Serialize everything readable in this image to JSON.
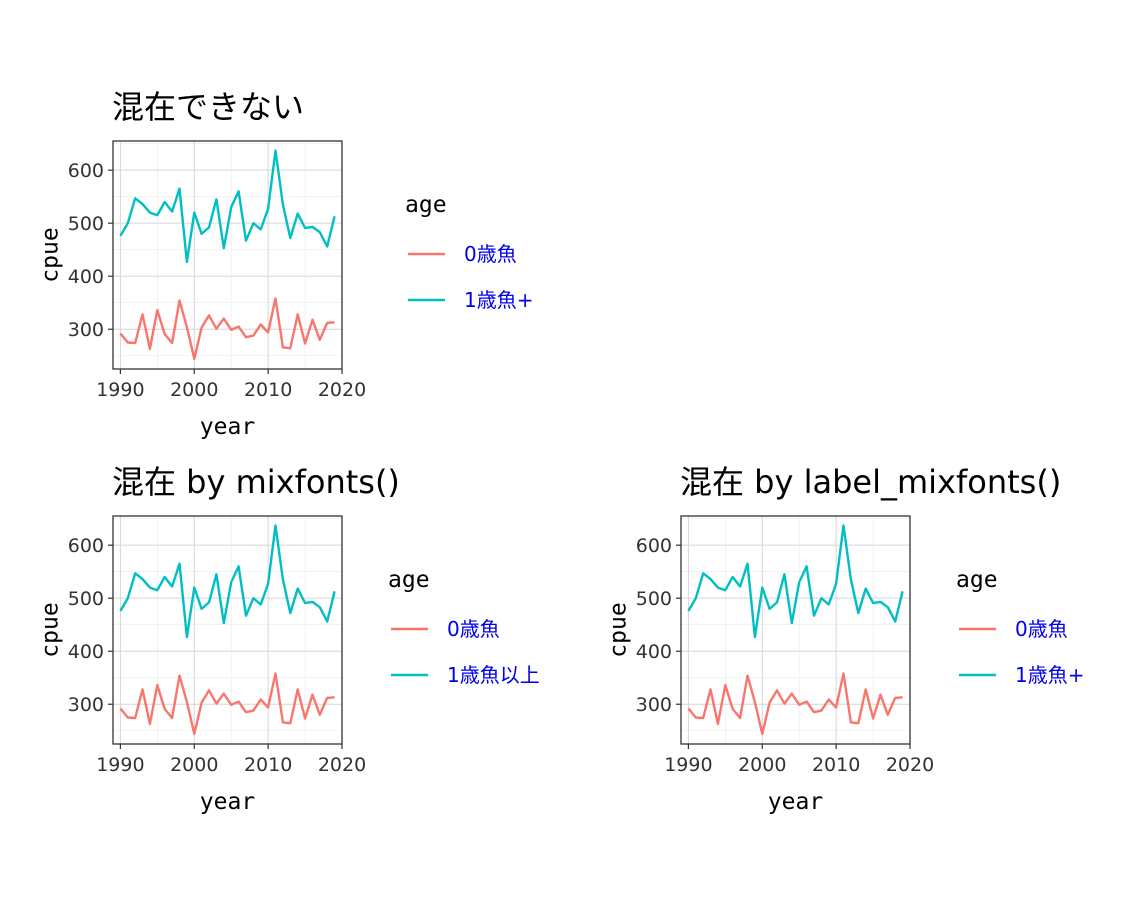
{
  "chart_data": [
    {
      "type": "line",
      "title": "混在できない",
      "xlabel": "year",
      "ylabel": "cpue",
      "xlim": [
        1989,
        2020
      ],
      "ylim": [
        225,
        655
      ],
      "xticks": [
        1990,
        2000,
        2010,
        2020
      ],
      "yticks": [
        300,
        400,
        500,
        600
      ],
      "grid": true,
      "legend": {
        "title": "age",
        "position": "right"
      },
      "x": [
        1990,
        1991,
        1992,
        1993,
        1994,
        1995,
        1996,
        1997,
        1998,
        1999,
        2000,
        2001,
        2002,
        2003,
        2004,
        2005,
        2006,
        2007,
        2008,
        2009,
        2010,
        2011,
        2012,
        2013,
        2014,
        2015,
        2016,
        2017,
        2018,
        2019
      ],
      "series": [
        {
          "name": "0歳魚",
          "color": "#f8766d",
          "values": [
            292,
            275,
            274,
            328,
            263,
            336,
            291,
            274,
            354,
            304,
            244,
            303,
            326,
            301,
            320,
            299,
            305,
            285,
            288,
            309,
            294,
            358,
            266,
            264,
            328,
            273,
            318,
            280,
            312,
            313
          ]
        },
        {
          "name": "1歳魚+",
          "color": "#00bfc4",
          "values": [
            476,
            500,
            547,
            536,
            520,
            515,
            540,
            522,
            565,
            427,
            520,
            480,
            492,
            545,
            453,
            530,
            560,
            467,
            500,
            488,
            527,
            637,
            535,
            472,
            518,
            491,
            493,
            483,
            456,
            513
          ]
        }
      ]
    },
    {
      "type": "line",
      "title": "混在 by mixfonts()",
      "xlabel": "year",
      "ylabel": "cpue",
      "xlim": [
        1989,
        2020
      ],
      "ylim": [
        225,
        655
      ],
      "xticks": [
        1990,
        2000,
        2010,
        2020
      ],
      "yticks": [
        300,
        400,
        500,
        600
      ],
      "grid": true,
      "legend": {
        "title": "age",
        "position": "right"
      },
      "x": [
        1990,
        1991,
        1992,
        1993,
        1994,
        1995,
        1996,
        1997,
        1998,
        1999,
        2000,
        2001,
        2002,
        2003,
        2004,
        2005,
        2006,
        2007,
        2008,
        2009,
        2010,
        2011,
        2012,
        2013,
        2014,
        2015,
        2016,
        2017,
        2018,
        2019
      ],
      "series": [
        {
          "name": "0歳魚",
          "color": "#f8766d",
          "values": [
            292,
            275,
            274,
            328,
            263,
            336,
            291,
            274,
            354,
            304,
            244,
            303,
            326,
            301,
            320,
            299,
            305,
            285,
            288,
            309,
            294,
            358,
            266,
            264,
            328,
            273,
            318,
            280,
            312,
            313
          ]
        },
        {
          "name": "1歳魚以上",
          "color": "#00bfc4",
          "values": [
            476,
            500,
            547,
            536,
            520,
            515,
            540,
            522,
            565,
            427,
            520,
            480,
            492,
            545,
            453,
            530,
            560,
            467,
            500,
            488,
            527,
            637,
            535,
            472,
            518,
            491,
            493,
            483,
            456,
            513
          ]
        }
      ]
    },
    {
      "type": "line",
      "title": "混在 by label_mixfonts()",
      "xlabel": "year",
      "ylabel": "cpue",
      "xlim": [
        1989,
        2020
      ],
      "ylim": [
        225,
        655
      ],
      "xticks": [
        1990,
        2000,
        2010,
        2020
      ],
      "yticks": [
        300,
        400,
        500,
        600
      ],
      "grid": true,
      "legend": {
        "title": "age",
        "position": "right"
      },
      "x": [
        1990,
        1991,
        1992,
        1993,
        1994,
        1995,
        1996,
        1997,
        1998,
        1999,
        2000,
        2001,
        2002,
        2003,
        2004,
        2005,
        2006,
        2007,
        2008,
        2009,
        2010,
        2011,
        2012,
        2013,
        2014,
        2015,
        2016,
        2017,
        2018,
        2019
      ],
      "series": [
        {
          "name": "0歳魚",
          "color": "#f8766d",
          "values": [
            292,
            275,
            274,
            328,
            263,
            336,
            291,
            274,
            354,
            304,
            244,
            303,
            326,
            301,
            320,
            299,
            305,
            285,
            288,
            309,
            294,
            358,
            266,
            264,
            328,
            273,
            318,
            280,
            312,
            313
          ]
        },
        {
          "name": "1歳魚+",
          "color": "#00bfc4",
          "values": [
            476,
            500,
            547,
            536,
            520,
            515,
            540,
            522,
            565,
            427,
            520,
            480,
            492,
            545,
            453,
            530,
            560,
            467,
            500,
            488,
            527,
            637,
            535,
            472,
            518,
            491,
            493,
            483,
            456,
            513
          ]
        }
      ]
    }
  ]
}
